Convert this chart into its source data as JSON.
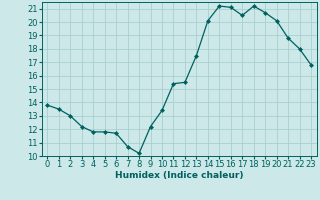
{
  "x": [
    0,
    1,
    2,
    3,
    4,
    5,
    6,
    7,
    8,
    9,
    10,
    11,
    12,
    13,
    14,
    15,
    16,
    17,
    18,
    19,
    20,
    21,
    22,
    23
  ],
  "y": [
    13.8,
    13.5,
    13.0,
    12.2,
    11.8,
    11.8,
    11.7,
    10.7,
    10.2,
    12.2,
    13.4,
    15.4,
    15.5,
    17.5,
    20.1,
    21.2,
    21.1,
    20.5,
    21.2,
    20.7,
    20.1,
    18.8,
    18.0,
    16.8
  ],
  "xlabel": "Humidex (Indice chaleur)",
  "xlim": [
    -0.5,
    23.5
  ],
  "ylim": [
    10,
    21.5
  ],
  "yticks": [
    10,
    11,
    12,
    13,
    14,
    15,
    16,
    17,
    18,
    19,
    20,
    21
  ],
  "xticks": [
    0,
    1,
    2,
    3,
    4,
    5,
    6,
    7,
    8,
    9,
    10,
    11,
    12,
    13,
    14,
    15,
    16,
    17,
    18,
    19,
    20,
    21,
    22,
    23
  ],
  "line_color": "#006060",
  "marker": "D",
  "marker_size": 2.0,
  "bg_color": "#cce8e8",
  "grid_color": "#aacece",
  "xlabel_fontsize": 6.5,
  "tick_fontsize": 6.0
}
